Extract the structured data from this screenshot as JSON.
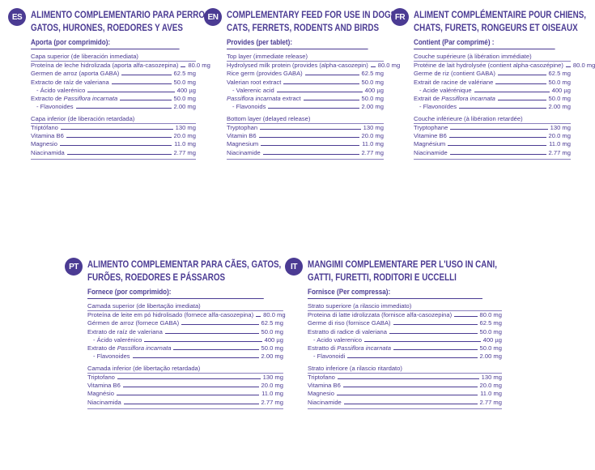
{
  "sections": [
    {
      "code": "ES",
      "title_lines": [
        "ALIMENTO COMPLEMENTARIO PARA PERROS,",
        "GATOS, HURONES, ROEDORES Y AVES"
      ],
      "provides": "Aporta (por comprimido):",
      "top_layer": "Capa superior (de liberación inmediata)",
      "top_rows": [
        {
          "name": "Proteína de leche hidrolizada (aporta alfa-casozepina)",
          "value": "80.0 mg"
        },
        {
          "name": "Germen de arroz (aporta GABA)",
          "value": "62.5 mg"
        },
        {
          "name": "Extracto de raíz de valeriana",
          "value": "50.0 mg"
        },
        {
          "name": "- Ácido valerénico",
          "value": "400 µg",
          "sub": true
        },
        {
          "name_pre": "Extracto de ",
          "name_italic": "Passiflora incarnata",
          "value": "50.0 mg"
        },
        {
          "name": "- Flavonoides",
          "value": "2.00 mg",
          "sub": true
        }
      ],
      "bottom_layer": "Capa inferior (de liberación retardada)",
      "bottom_rows": [
        {
          "name": "Triptófano",
          "value": "130 mg"
        },
        {
          "name": "Vitamina B6",
          "value": "20.0 mg"
        },
        {
          "name": "Magnesio",
          "value": "11.0 mg"
        },
        {
          "name": "Niacinamida",
          "value": "2.77 mg"
        }
      ]
    },
    {
      "code": "EN",
      "title_lines": [
        "COMPLEMENTARY FEED FOR USE IN DOGS,",
        "CATS, FERRETS, RODENTS AND BIRDS"
      ],
      "provides": "Provides (per tablet):",
      "top_layer": "Top layer (immediate release)",
      "top_rows": [
        {
          "name": "Hydrolysed milk protein (provides (alpha-casozepin)",
          "value": "80.0 mg"
        },
        {
          "name": "Rice germ (provides GABA)",
          "value": "62.5 mg"
        },
        {
          "name": "Valerian root extract",
          "value": "50.0 mg"
        },
        {
          "name": "- Valerenic acid",
          "value": "400 µg",
          "sub": true
        },
        {
          "name_pre": "",
          "name_italic": "Passiflora incarnata",
          "name_post": " extract",
          "value": "50.0 mg"
        },
        {
          "name": "- Flavonoids",
          "value": "2.00 mg",
          "sub": true
        }
      ],
      "bottom_layer": "Bottom layer (delayed release)",
      "bottom_rows": [
        {
          "name": "Tryptophan",
          "value": "130 mg"
        },
        {
          "name": "Vitamin B6",
          "value": "20.0 mg"
        },
        {
          "name": "Magnesium",
          "value": "11.0 mg"
        },
        {
          "name": "Niacinamide",
          "value": "2.77 mg"
        }
      ]
    },
    {
      "code": "FR",
      "title_lines": [
        "ALIMENT COMPLÉMENTAIRE POUR CHIENS,",
        "CHATS, FURETS, RONGEURS ET OISEAUX"
      ],
      "provides": "Contient (Par comprimé) :",
      "top_layer": "Couche supérieure (à libération immédiate)",
      "top_rows": [
        {
          "name": "Protéine de lait hydrolysée (contient alpha-casozépine)",
          "value": "80.0 mg"
        },
        {
          "name": "Germe de riz (contient GABA)",
          "value": "62.5 mg"
        },
        {
          "name": "Extrait de racine de valériane",
          "value": "50.0 mg"
        },
        {
          "name": "- Acide valérénique",
          "value": "400 µg",
          "sub": true
        },
        {
          "name_pre": "Extrait de ",
          "name_italic": "Passiflora incarnata",
          "value": "50.0 mg"
        },
        {
          "name": "- Flavonoïdes",
          "value": "2.00 mg",
          "sub": true
        }
      ],
      "bottom_layer": "Couche inférieure (à libération retardée)",
      "bottom_rows": [
        {
          "name": "Tryptophane",
          "value": "130 mg"
        },
        {
          "name": "Vitamine B6",
          "value": "20.0 mg"
        },
        {
          "name": "Magnésium",
          "value": "11.0 mg"
        },
        {
          "name": "Niacinamide",
          "value": "2.77 mg"
        }
      ]
    },
    {
      "code": "PT",
      "title_lines": [
        "ALIMENTO COMPLEMENTAR PARA CÃES, GATOS,",
        "FURÕES, ROEDORES E PÁSSAROS"
      ],
      "provides": "Fornece (por comprimido):",
      "top_layer": "Camada superior (de libertação imediata)",
      "top_rows": [
        {
          "name": "Proteína de leite em pó hidrolisado (fornece alfa-casozepina)",
          "value": "80.0 mg"
        },
        {
          "name": "Gérmen de arroz (fornece GABA)",
          "value": "62.5 mg"
        },
        {
          "name": "Extrato de raíz de valeriana",
          "value": "50.0 mg"
        },
        {
          "name": "- Ácido valerénico",
          "value": "400 µg",
          "sub": true
        },
        {
          "name_pre": "Extrato de ",
          "name_italic": "Passiflora incarnata",
          "value": "50.0 mg"
        },
        {
          "name": "- Flavonoides",
          "value": "2.00 mg",
          "sub": true
        }
      ],
      "bottom_layer": "Camada inferior (de libertação retardada)",
      "bottom_rows": [
        {
          "name": "Triptofano",
          "value": "130 mg"
        },
        {
          "name": "Vitamina B6",
          "value": "20.0 mg"
        },
        {
          "name": "Magnésio",
          "value": "11.0 mg"
        },
        {
          "name": "Niacinamida",
          "value": "2.77 mg"
        }
      ]
    },
    {
      "code": "IT",
      "title_lines": [
        "MANGIMI COMPLEMENTARE PER L'USO IN CANI,",
        "GATTI, FURETTI, RODITORI E UCCELLI"
      ],
      "provides": "Fornisce (Per compressa):",
      "top_layer": "Strato superiore (a rilascio immediato)",
      "top_rows": [
        {
          "name": "Proteina di latte idrolizzata (fornisce alfa-casozepina)",
          "value": "80.0 mg"
        },
        {
          "name": "Germe di riso (fornisce GABA)",
          "value": "62.5 mg"
        },
        {
          "name": "Estratto di radice di valeriana",
          "value": "50.0 mg"
        },
        {
          "name": "- Acido valerenico",
          "value": "400 µg",
          "sub": true
        },
        {
          "name_pre": "Estratto di ",
          "name_italic": "Passiflora incarnata",
          "value": "50.0 mg"
        },
        {
          "name": "- Flavonoidi",
          "value": "2.00 mg",
          "sub": true
        }
      ],
      "bottom_layer": "Strato inferiore (a rilascio ritardato)",
      "bottom_rows": [
        {
          "name": "Triptofano",
          "value": "130 mg"
        },
        {
          "name": "Vitamina B6",
          "value": "20.0 mg"
        },
        {
          "name": "Magnesio",
          "value": "11.0 mg"
        },
        {
          "name": "Niacinamide",
          "value": "2.77 mg"
        }
      ]
    }
  ]
}
